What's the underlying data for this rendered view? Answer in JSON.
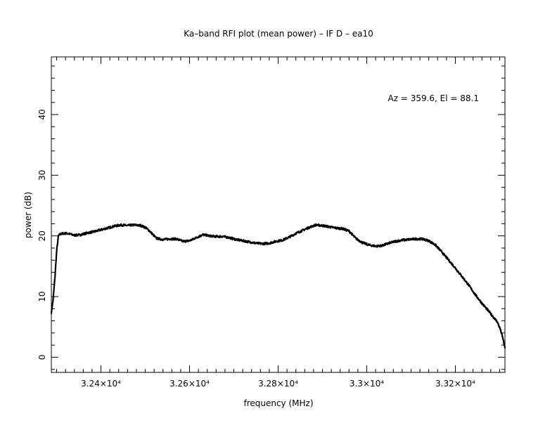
{
  "chart_data": {
    "type": "line",
    "title": "Ka–band RFI plot (mean power) – IF D – ea10",
    "xlabel": "frequency (MHz)",
    "ylabel": "power (dB)",
    "annotation": "Az = 359.6, El = 88.1",
    "xlim": [
      32288,
      33312
    ],
    "ylim": [
      -2.5,
      49.5
    ],
    "x_ticks": [
      32400,
      32600,
      32800,
      33000,
      33200
    ],
    "x_tick_labels": [
      "3.24×10⁴",
      "3.26×10⁴",
      "3.28×10⁴",
      "3.3×10⁴",
      "3.32×10⁴"
    ],
    "y_ticks": [
      0,
      10,
      20,
      30,
      40
    ],
    "y_tick_labels": [
      "0",
      "10",
      "20",
      "30",
      "40"
    ],
    "grid": false,
    "series": [
      {
        "color": "#000000",
        "x": [
          32288,
          32292,
          32296,
          32300,
          32304,
          32308,
          32315,
          32325,
          32340,
          32355,
          32370,
          32385,
          32400,
          32415,
          32430,
          32445,
          32460,
          32475,
          32490,
          32500,
          32510,
          32525,
          32540,
          32555,
          32570,
          32585,
          32600,
          32615,
          32630,
          32645,
          32660,
          32675,
          32690,
          32705,
          32720,
          32735,
          32750,
          32765,
          32780,
          32795,
          32810,
          32825,
          32840,
          32855,
          32870,
          32885,
          32900,
          32915,
          32930,
          32945,
          32960,
          32975,
          32990,
          33005,
          33020,
          33035,
          33050,
          33065,
          33080,
          33095,
          33110,
          33125,
          33140,
          33155,
          33170,
          33185,
          33200,
          33215,
          33230,
          33245,
          33260,
          33275,
          33285,
          33295,
          33302,
          33308,
          33312
        ],
        "y": [
          7.3,
          9.5,
          13,
          17.5,
          20,
          20.3,
          20.4,
          20.4,
          20.1,
          20.2,
          20.5,
          20.7,
          21,
          21.3,
          21.6,
          21.8,
          21.7,
          21.8,
          21.7,
          21.4,
          20.8,
          19.6,
          19.4,
          19.5,
          19.5,
          19.1,
          19.2,
          19.7,
          20.2,
          20.0,
          19.9,
          19.9,
          19.7,
          19.4,
          19.2,
          19.0,
          18.8,
          18.7,
          18.8,
          19.1,
          19.3,
          19.8,
          20.4,
          20.9,
          21.4,
          21.8,
          21.7,
          21.5,
          21.3,
          21.2,
          20.8,
          19.6,
          18.9,
          18.5,
          18.3,
          18.4,
          18.8,
          19.1,
          19.3,
          19.4,
          19.5,
          19.5,
          19.2,
          18.5,
          17.3,
          16.0,
          14.7,
          13.3,
          11.9,
          10.3,
          8.9,
          7.6,
          6.7,
          5.8,
          4.5,
          2.9,
          1.5
        ]
      }
    ]
  }
}
